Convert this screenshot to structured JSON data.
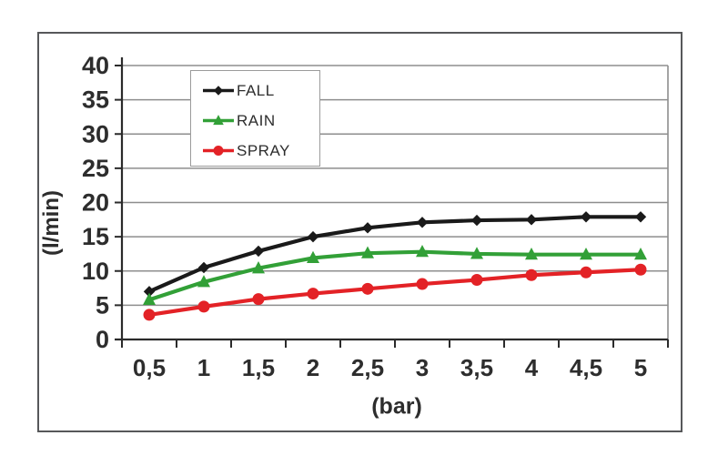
{
  "page": {
    "background": "#ffffff"
  },
  "chart": {
    "frame_color": "#57585a",
    "grid_color": "#8e8e8e",
    "axis_color": "#2b2b2b",
    "text_color": "#2d2d2d",
    "plot_background": "#ffffff",
    "legend_border_color": "#9b9b9b"
  },
  "chart_data": {
    "type": "line",
    "x": [
      0.5,
      1,
      1.5,
      2,
      2.5,
      3,
      3.5,
      4,
      4.5,
      5
    ],
    "x_tick_labels": [
      "0,5",
      "1",
      "1,5",
      "2",
      "2,5",
      "3",
      "3,5",
      "4",
      "4,5",
      "5"
    ],
    "xlabel": "(bar)",
    "ylabel": "(l/min)",
    "ylim": [
      0,
      40
    ],
    "y_tick_step": 5,
    "y_tick_labels": [
      "0",
      "5",
      "10",
      "15",
      "20",
      "25",
      "30",
      "35",
      "40"
    ],
    "grid": "horizontal",
    "legend_position": "top-left-inside",
    "series": [
      {
        "name": "FALL",
        "color": "#1a1a1a",
        "marker": "diamond",
        "values": [
          7.0,
          10.5,
          12.9,
          15.0,
          16.3,
          17.1,
          17.4,
          17.5,
          17.9,
          17.9
        ]
      },
      {
        "name": "RAIN",
        "color": "#32a037",
        "marker": "triangle",
        "values": [
          5.8,
          8.4,
          10.4,
          11.9,
          12.6,
          12.8,
          12.5,
          12.4,
          12.4,
          12.4
        ]
      },
      {
        "name": "SPRAY",
        "color": "#e32226",
        "marker": "circle",
        "values": [
          3.6,
          4.8,
          5.9,
          6.7,
          7.4,
          8.1,
          8.7,
          9.4,
          9.8,
          10.2
        ]
      }
    ]
  }
}
